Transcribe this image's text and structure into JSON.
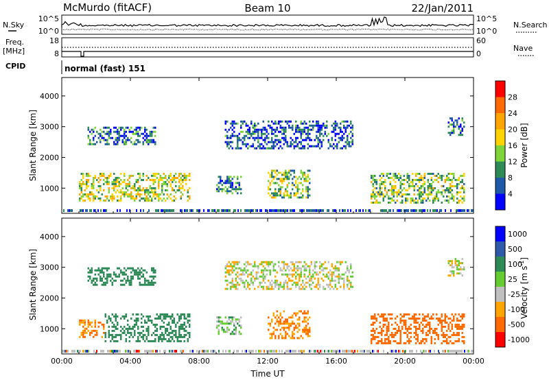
{
  "header": {
    "station": "McMurdo (fitACF)",
    "beam": "Beam 10",
    "date": "22/Jan/2011"
  },
  "noise_panel": {
    "left_label": "N.Sky",
    "right_label": "N.Search",
    "tick_top": "10^5",
    "tick_bottom": "10^0"
  },
  "freq_panel": {
    "left_label_1": "Freq.",
    "left_label_2": "[MHz]",
    "left_tick_top": "18",
    "left_tick_bottom": "8",
    "right_label": "Nave",
    "right_tick_top": "60",
    "right_tick_bottom": "0"
  },
  "cpid": {
    "label": "CPID",
    "value": "normal (fast) 151"
  },
  "chart_data": [
    {
      "type": "heatmap",
      "name_printed": "",
      "xlabel": "Time UT",
      "ylabel": "Slant Range [km]",
      "x_ticks": [
        "00:00",
        "04:00",
        "08:00",
        "12:00",
        "16:00",
        "20:00",
        "00:00"
      ],
      "x_range_hours": [
        0,
        24
      ],
      "y_ticks": [
        "1000",
        "2000",
        "3000",
        "4000"
      ],
      "y_range_km": [
        180,
        4600
      ],
      "colorbar": {
        "label": "Power [dB]",
        "ticks": [
          "28",
          "24",
          "20",
          "16",
          "12",
          "8",
          "4"
        ],
        "colors": [
          "#ff0000",
          "#ff6a00",
          "#ffa500",
          "#ffd400",
          "#7fd43a",
          "#2e8b57",
          "#1e5aa8",
          "#0000ff"
        ]
      },
      "echo_regions_hours_km": [
        {
          "t0": 1.0,
          "t1": 7.5,
          "r0": 600,
          "r1": 1500,
          "power": 16
        },
        {
          "t0": 1.5,
          "t1": 5.5,
          "r0": 2400,
          "r1": 3000,
          "power": 8
        },
        {
          "t0": 9.0,
          "t1": 10.5,
          "r0": 800,
          "r1": 1400,
          "power": 8
        },
        {
          "t0": 12.0,
          "t1": 14.5,
          "r0": 700,
          "r1": 1600,
          "power": 14
        },
        {
          "t0": 9.5,
          "t1": 17.0,
          "r0": 2300,
          "r1": 3200,
          "power": 6
        },
        {
          "t0": 18.0,
          "t1": 23.5,
          "r0": 500,
          "r1": 1500,
          "power": 14
        },
        {
          "t0": 22.5,
          "t1": 23.5,
          "r0": 2700,
          "r1": 3300,
          "power": 6
        }
      ]
    },
    {
      "type": "heatmap",
      "xlabel": "Time UT",
      "ylabel": "Slant Range [km]",
      "x_ticks": [
        "00:00",
        "04:00",
        "08:00",
        "12:00",
        "16:00",
        "20:00",
        "00:00"
      ],
      "x_range_hours": [
        0,
        24
      ],
      "y_ticks": [
        "1000",
        "2000",
        "3000",
        "4000"
      ],
      "y_range_km": [
        180,
        4600
      ],
      "colorbar": {
        "label": "Velocity [m s",
        "label_sup": "-1",
        "label_end": "]",
        "ticks": [
          "1000",
          "500",
          "100",
          "25",
          "-25",
          "-100",
          "-500",
          "-1000"
        ],
        "colors": [
          "#0000ff",
          "#2e5aa8",
          "#2e8b57",
          "#66cc33",
          "#c0c0c0",
          "#ffa500",
          "#ff6a00",
          "#ff0000"
        ]
      },
      "echo_regions_hours_km": [
        {
          "t0": 1.0,
          "t1": 2.5,
          "r0": 700,
          "r1": 1300,
          "vel": -100
        },
        {
          "t0": 2.5,
          "t1": 7.5,
          "r0": 600,
          "r1": 1500,
          "vel": 300
        },
        {
          "t0": 1.5,
          "t1": 5.5,
          "r0": 2400,
          "r1": 3000,
          "vel": 300
        },
        {
          "t0": 9.0,
          "t1": 10.5,
          "r0": 800,
          "r1": 1400,
          "vel": 50
        },
        {
          "t0": 12.0,
          "t1": 14.5,
          "r0": 700,
          "r1": 1600,
          "vel": -100
        },
        {
          "t0": 9.5,
          "t1": 17.0,
          "r0": 2300,
          "r1": 3200,
          "vel": 0
        },
        {
          "t0": 18.0,
          "t1": 23.5,
          "r0": 500,
          "r1": 1500,
          "vel": -200
        },
        {
          "t0": 22.5,
          "t1": 23.5,
          "r0": 2700,
          "r1": 3300,
          "vel": 0
        }
      ]
    }
  ]
}
